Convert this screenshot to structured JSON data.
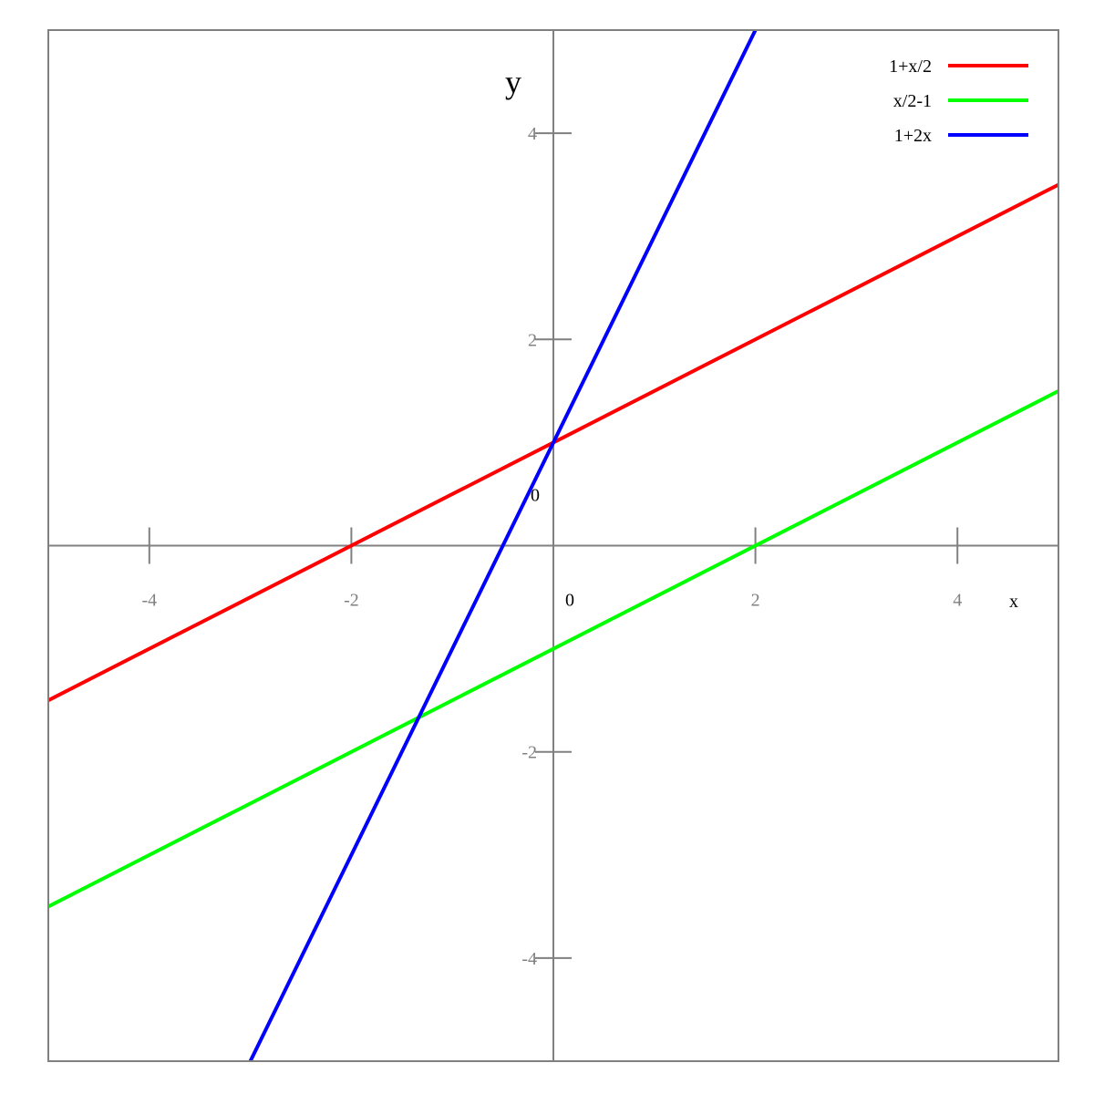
{
  "chart_data": {
    "type": "line",
    "xlabel": "x",
    "ylabel": "y",
    "xlim": [
      -5,
      5
    ],
    "ylim": [
      -5,
      5
    ],
    "x_ticks": [
      -4,
      -2,
      0,
      2,
      4
    ],
    "y_ticks": [
      -4,
      -2,
      0,
      2,
      4
    ],
    "x_tick_labels": [
      "-4",
      "-2",
      "0",
      "2",
      "4"
    ],
    "y_tick_labels": [
      "-4",
      "-2",
      "0",
      "2",
      "4"
    ],
    "grid": false,
    "legend_position": "top-right",
    "series": [
      {
        "name": "1+x/2",
        "color": "#ff0000",
        "x": [
          -5,
          5
        ],
        "y": [
          -1.5,
          3.5
        ]
      },
      {
        "name": "x/2-1",
        "color": "#00ff00",
        "x": [
          -5,
          5
        ],
        "y": [
          -3.5,
          1.5
        ]
      },
      {
        "name": "1+2x",
        "color": "#0000ff",
        "x": [
          -3,
          2
        ],
        "y": [
          -5,
          5
        ]
      }
    ]
  }
}
